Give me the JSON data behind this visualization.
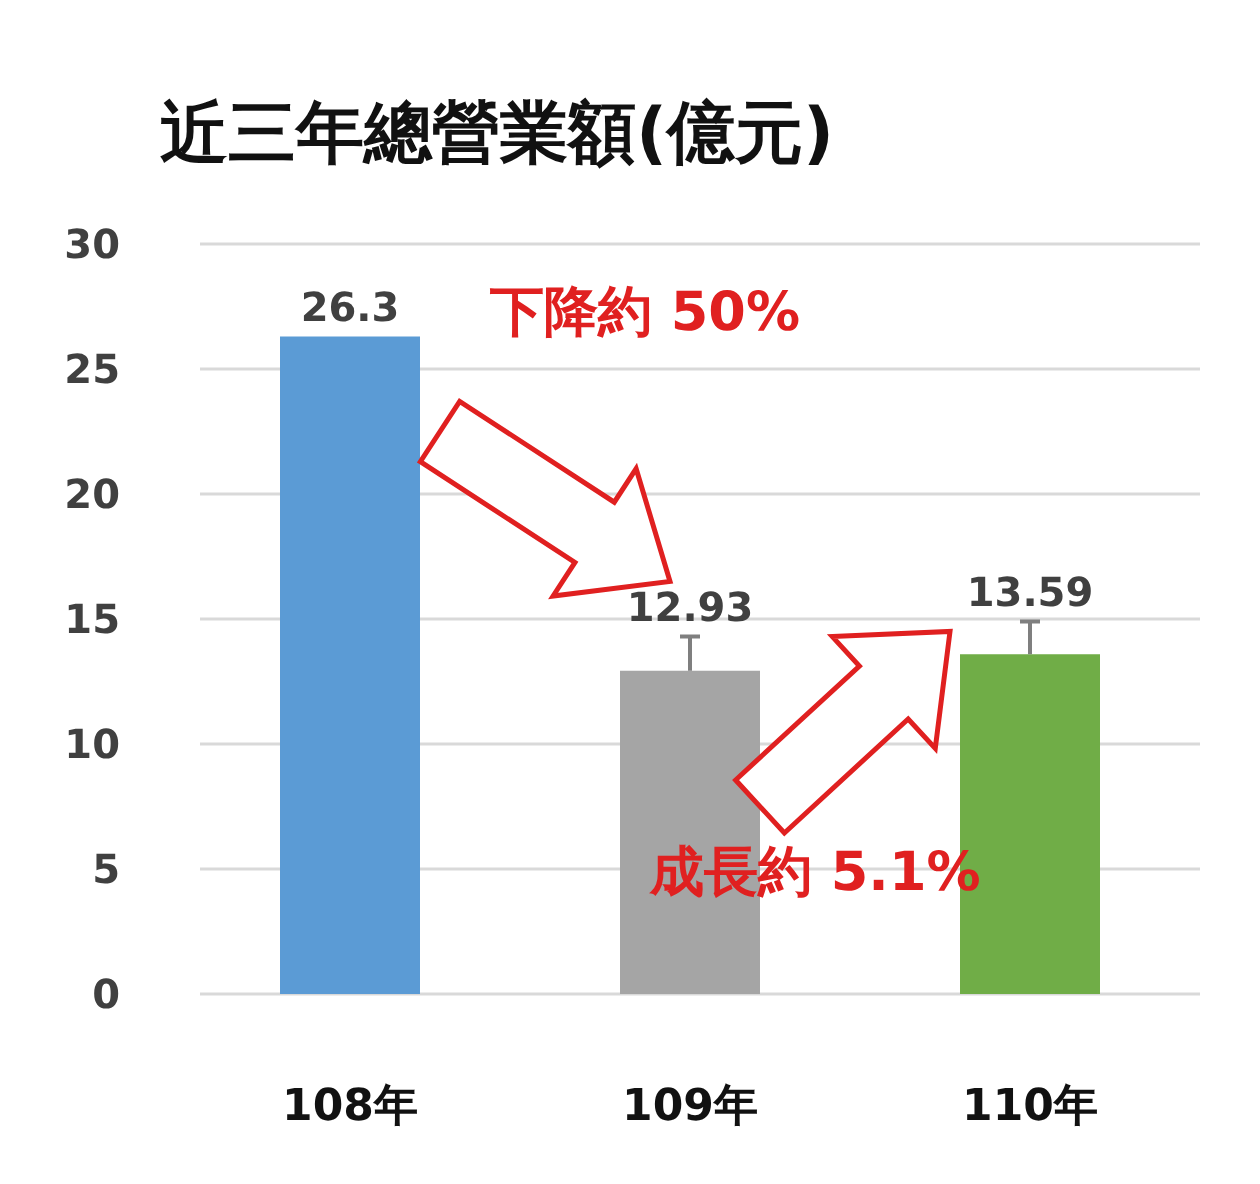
{
  "chart_data": {
    "type": "bar",
    "title": "近三年總營業額(億元)",
    "categories": [
      "108年",
      "109年",
      "110年"
    ],
    "values": [
      26.3,
      12.93,
      13.59
    ],
    "colors": [
      "#5b9bd5",
      "#a5a5a5",
      "#70ad47"
    ],
    "errors": [
      null,
      [
        12.93,
        14.3
      ],
      [
        13.59,
        14.9
      ]
    ],
    "ylim": [
      0,
      30
    ],
    "yticks": [
      0,
      5,
      10,
      15,
      20,
      25,
      30
    ],
    "grid": "y",
    "data_labels": true,
    "annotations": [
      "下降約 50%",
      "成長約 5.1%"
    ]
  }
}
